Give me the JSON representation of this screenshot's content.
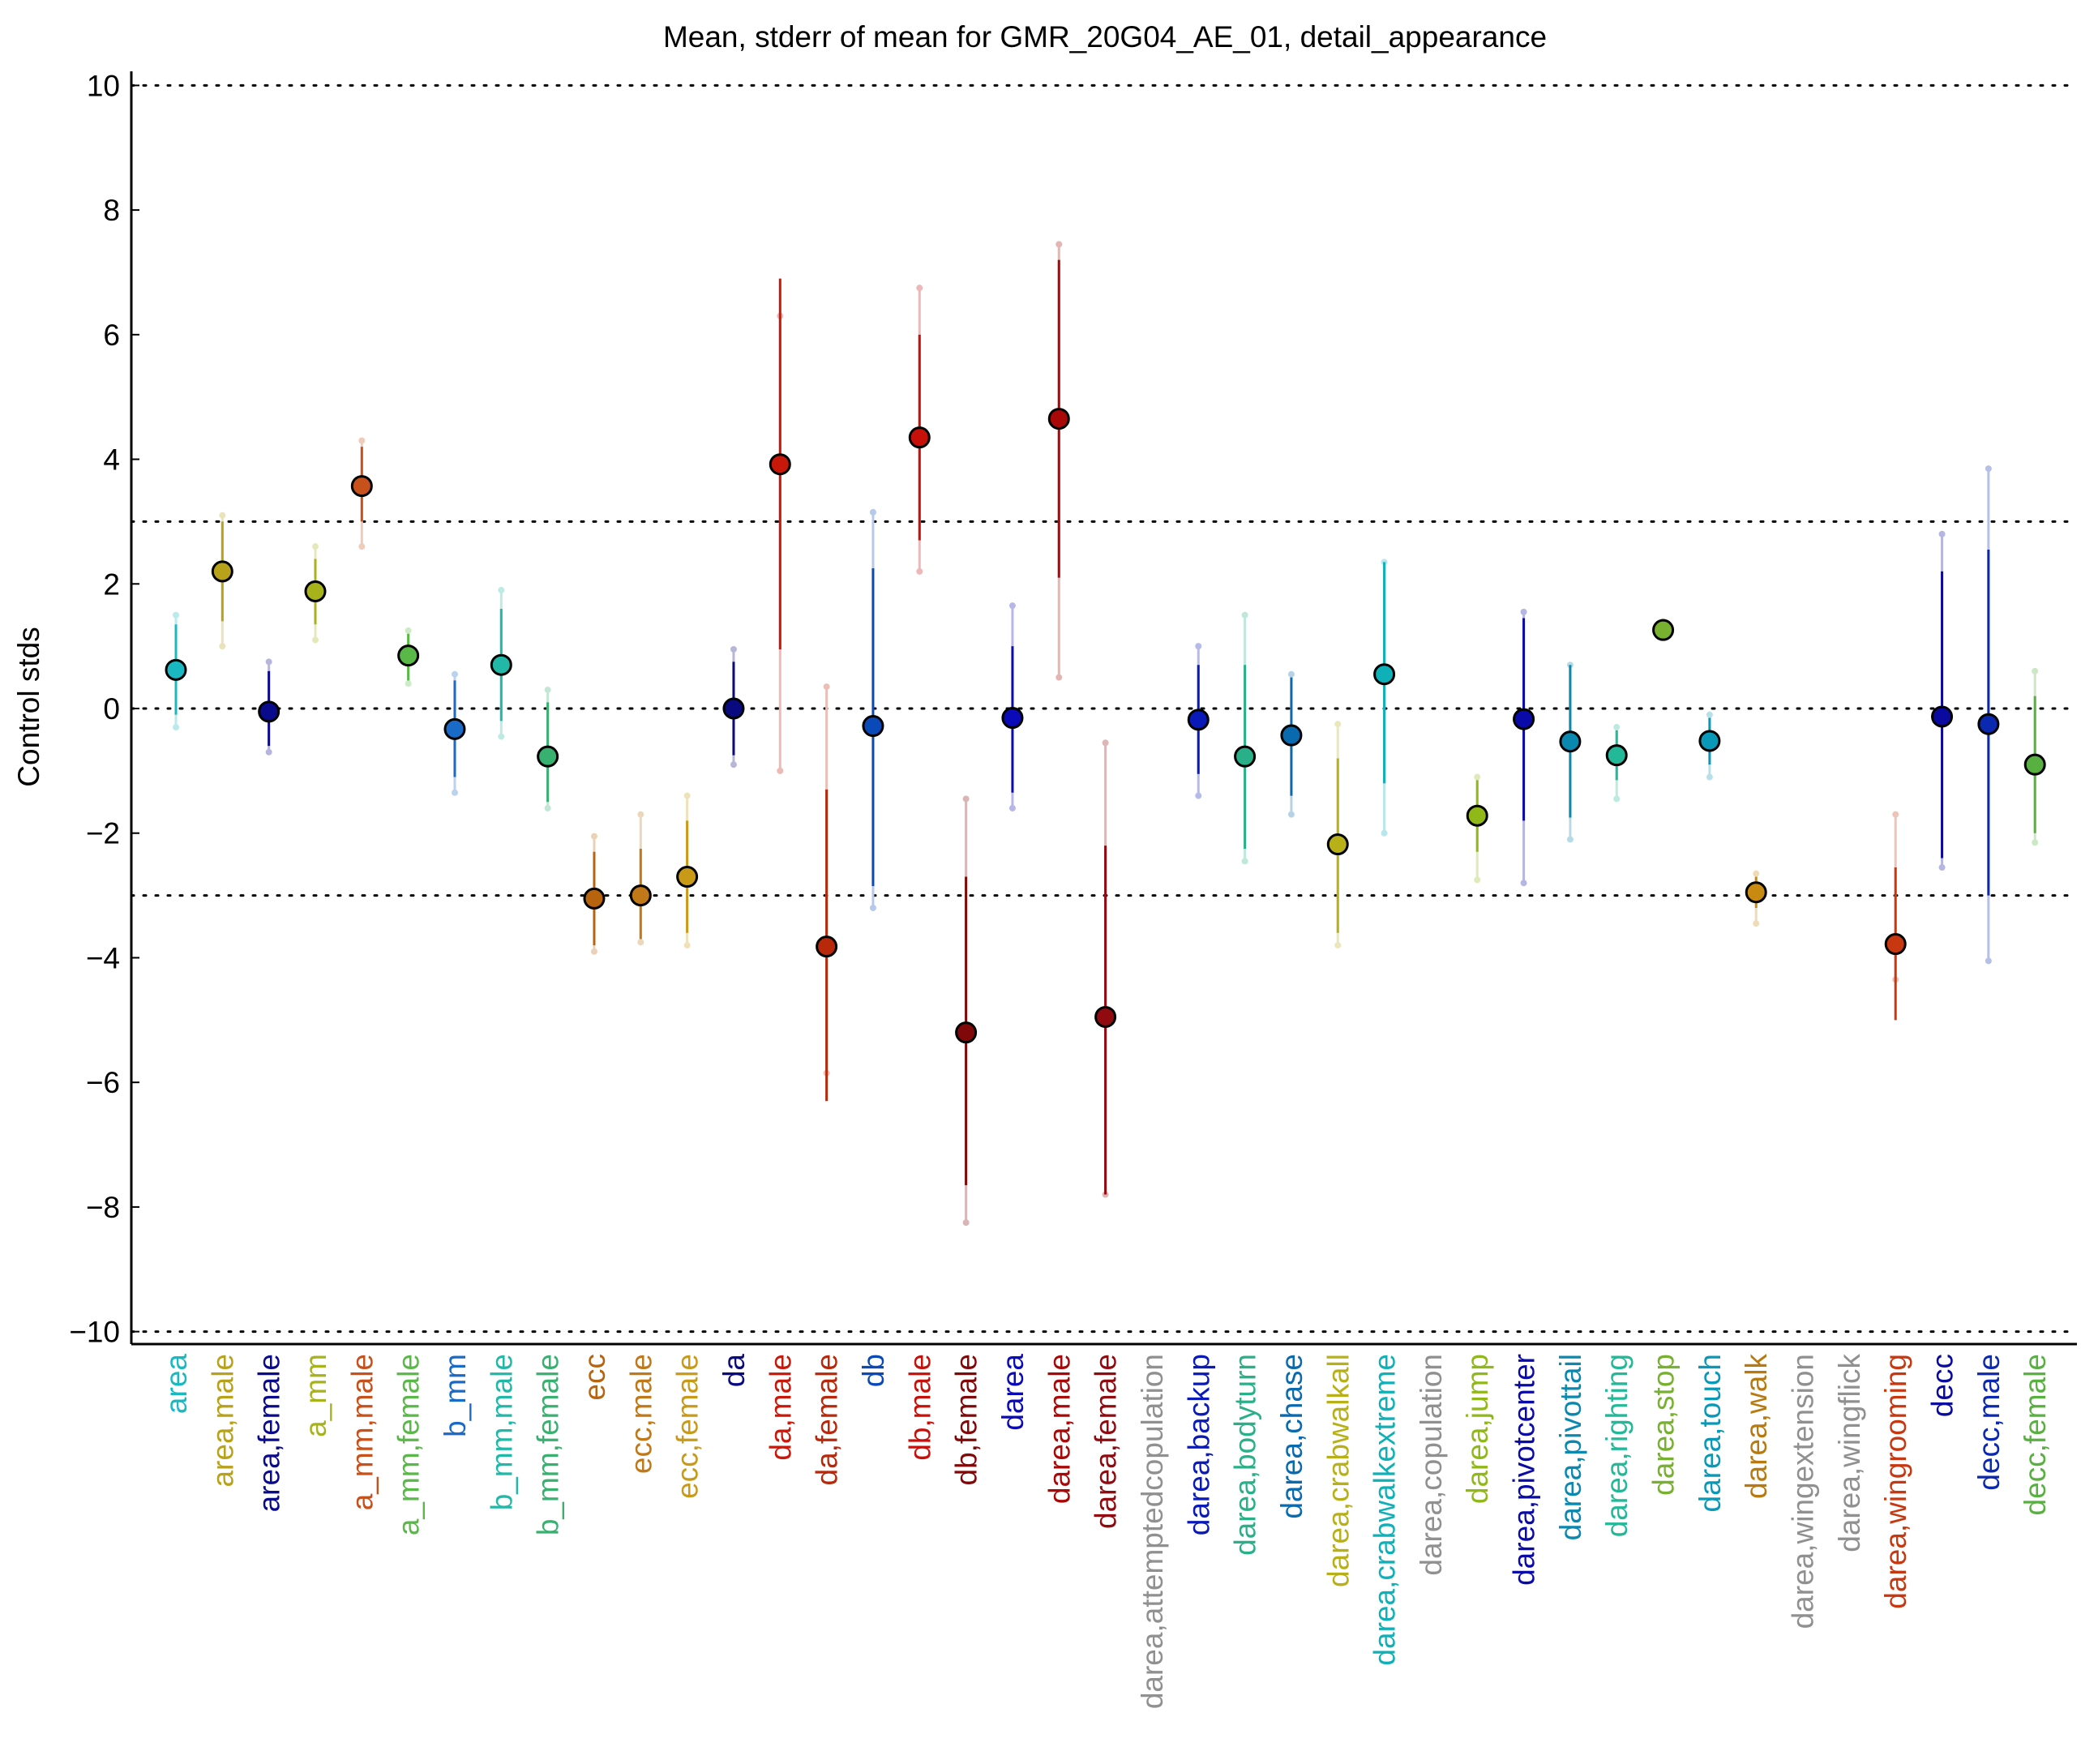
{
  "chart_data": {
    "type": "scatter",
    "title": "Mean, stderr of mean for GMR_20G04_AE_01, detail_appearance",
    "ylabel": "Control stds",
    "xlabel": "",
    "ylim": [
      -10.2,
      10.2
    ],
    "yticks": [
      10,
      8,
      6,
      4,
      2,
      0,
      -2,
      -4,
      -6,
      -8,
      -10
    ],
    "ytick_labels": [
      "10",
      "8",
      "6",
      "4",
      "2",
      "0",
      "−2",
      "−4",
      "−6",
      "−8",
      "−10"
    ],
    "reference_lines": [
      10,
      3,
      0,
      -3,
      -10
    ],
    "grid": false,
    "legend": "none",
    "categories": [
      "area",
      "area,male",
      "area,female",
      "a_mm",
      "a_mm,male",
      "a_mm,female",
      "b_mm",
      "b_mm,male",
      "b_mm,female",
      "ecc",
      "ecc,male",
      "ecc,female",
      "da",
      "da,male",
      "da,female",
      "db",
      "db,male",
      "db,female",
      "darea",
      "darea,male",
      "darea,female",
      "darea,attemptedcopulation",
      "darea,backup",
      "darea,bodyturn",
      "darea,chase",
      "darea,crabwalkall",
      "darea,crabwalkextreme",
      "darea,copulation",
      "darea,jump",
      "darea,pivotcenter",
      "darea,pivottail",
      "darea,righting",
      "darea,stop",
      "darea,touch",
      "darea,walk",
      "darea,wingextension",
      "darea,wingflick",
      "darea,wingrooming",
      "decc",
      "decc,male",
      "decc,female"
    ],
    "points": [
      {
        "mean": 0.62,
        "se_low": -0.1,
        "se_high": 1.35,
        "range_low": -0.3,
        "range_high": 1.5,
        "color": "#1ab8c0",
        "label_color": "#1ab8c0"
      },
      {
        "mean": 2.2,
        "se_low": 1.4,
        "se_high": 3.0,
        "range_low": 1.0,
        "range_high": 3.1,
        "color": "#b8a21a",
        "label_color": "#b8a21a"
      },
      {
        "mean": -0.05,
        "se_low": -0.6,
        "se_high": 0.6,
        "range_low": -0.7,
        "range_high": 0.75,
        "color": "#0a0a8c",
        "label_color": "#0a0a8c"
      },
      {
        "mean": 1.88,
        "se_low": 1.35,
        "se_high": 2.4,
        "range_low": 1.1,
        "range_high": 2.6,
        "color": "#a8b21a",
        "label_color": "#a8b21a"
      },
      {
        "mean": 3.57,
        "se_low": 3.0,
        "se_high": 4.2,
        "range_low": 2.6,
        "range_high": 4.3,
        "color": "#c8501a",
        "label_color": "#c8501a"
      },
      {
        "mean": 0.85,
        "se_low": 0.45,
        "se_high": 1.2,
        "range_low": 0.4,
        "range_high": 1.25,
        "color": "#5ab848",
        "label_color": "#5ab848"
      },
      {
        "mean": -0.33,
        "se_low": -1.1,
        "se_high": 0.45,
        "range_low": -1.35,
        "range_high": 0.55,
        "color": "#1a6ac8",
        "label_color": "#1a6ac8"
      },
      {
        "mean": 0.7,
        "se_low": -0.2,
        "se_high": 1.6,
        "range_low": -0.45,
        "range_high": 1.9,
        "color": "#22b8a8",
        "label_color": "#22b8a8"
      },
      {
        "mean": -0.77,
        "se_low": -1.5,
        "se_high": 0.1,
        "range_low": -1.6,
        "range_high": 0.3,
        "color": "#38b070",
        "label_color": "#38b070"
      },
      {
        "mean": -3.05,
        "se_low": -3.8,
        "se_high": -2.3,
        "range_low": -3.9,
        "range_high": -2.05,
        "color": "#b8640f",
        "label_color": "#b8640f"
      },
      {
        "mean": -3.0,
        "se_low": -3.7,
        "se_high": -2.25,
        "range_low": -3.75,
        "range_high": -1.7,
        "color": "#c07818",
        "label_color": "#c07818"
      },
      {
        "mean": -2.7,
        "se_low": -3.6,
        "se_high": -1.8,
        "range_low": -3.8,
        "range_high": -1.4,
        "color": "#c89a18",
        "label_color": "#c89a18"
      },
      {
        "mean": 0.0,
        "se_low": -0.75,
        "se_high": 0.75,
        "range_low": -0.9,
        "range_high": 0.95,
        "color": "#0a0a80",
        "label_color": "#0a0a80"
      },
      {
        "mean": 3.92,
        "se_low": 0.95,
        "se_high": 6.9,
        "range_low": -1.0,
        "range_high": 6.3,
        "color": "#c8180a",
        "label_color": "#c8180a"
      },
      {
        "mean": -3.82,
        "se_low": -6.3,
        "se_high": -1.3,
        "range_low": -5.85,
        "range_high": 0.35,
        "color": "#b8280a",
        "label_color": "#b8280a"
      },
      {
        "mean": -0.28,
        "se_low": -2.85,
        "se_high": 2.25,
        "range_low": -3.2,
        "range_high": 3.15,
        "color": "#0a4ab8",
        "label_color": "#0a4ab8"
      },
      {
        "mean": 4.35,
        "se_low": 2.7,
        "se_high": 6.0,
        "range_low": 2.2,
        "range_high": 6.75,
        "color": "#c8100a",
        "label_color": "#c8100a"
      },
      {
        "mean": -5.2,
        "se_low": -7.65,
        "se_high": -2.7,
        "range_low": -8.25,
        "range_high": -1.45,
        "color": "#800808",
        "label_color": "#800808"
      },
      {
        "mean": -0.15,
        "se_low": -1.35,
        "se_high": 1.0,
        "range_low": -1.6,
        "range_high": 1.65,
        "color": "#0a0ab8",
        "label_color": "#0a0ab8"
      },
      {
        "mean": 4.65,
        "se_low": 2.1,
        "se_high": 7.2,
        "range_low": 0.5,
        "range_high": 7.45,
        "color": "#a80808",
        "label_color": "#a80808"
      },
      {
        "mean": -4.95,
        "se_low": -7.8,
        "se_high": -2.2,
        "range_low": -7.8,
        "range_high": -0.55,
        "color": "#900a10",
        "label_color": "#900a10"
      },
      {
        "mean": null,
        "se_low": null,
        "se_high": null,
        "range_low": null,
        "range_high": null,
        "color": "#909090",
        "label_color": "#909090"
      },
      {
        "mean": -0.18,
        "se_low": -1.05,
        "se_high": 0.7,
        "range_low": -1.4,
        "range_high": 1.0,
        "color": "#0a1ab8",
        "label_color": "#0a1ab8"
      },
      {
        "mean": -0.77,
        "se_low": -2.25,
        "se_high": 0.7,
        "range_low": -2.45,
        "range_high": 1.5,
        "color": "#2ab088",
        "label_color": "#2ab088"
      },
      {
        "mean": -0.43,
        "se_low": -1.4,
        "se_high": 0.5,
        "range_low": -1.7,
        "range_high": 0.55,
        "color": "#0a6ab0",
        "label_color": "#0a6ab0"
      },
      {
        "mean": -2.18,
        "se_low": -3.6,
        "se_high": -0.8,
        "range_low": -3.8,
        "range_high": -0.25,
        "color": "#b8b018",
        "label_color": "#b8b018"
      },
      {
        "mean": 0.55,
        "se_low": -1.2,
        "se_high": 2.35,
        "range_low": -2.0,
        "range_high": 2.35,
        "color": "#10b0b8",
        "label_color": "#10b0b8"
      },
      {
        "mean": null,
        "se_low": null,
        "se_high": null,
        "range_low": null,
        "range_high": null,
        "color": "#909090",
        "label_color": "#909090"
      },
      {
        "mean": -1.72,
        "se_low": -2.3,
        "se_high": -1.15,
        "range_low": -2.75,
        "range_high": -1.1,
        "color": "#90b818",
        "label_color": "#90b818"
      },
      {
        "mean": -0.17,
        "se_low": -1.8,
        "se_high": 1.45,
        "range_low": -2.8,
        "range_high": 1.55,
        "color": "#0a0aa8",
        "label_color": "#0a0aa8"
      },
      {
        "mean": -0.53,
        "se_low": -1.75,
        "se_high": 0.7,
        "range_low": -2.1,
        "range_high": 0.7,
        "color": "#0a88b0",
        "label_color": "#0a88b0"
      },
      {
        "mean": -0.75,
        "se_low": -1.15,
        "se_high": -0.35,
        "range_low": -1.45,
        "range_high": -0.3,
        "color": "#22b898",
        "label_color": "#22b898"
      },
      {
        "mean": 1.26,
        "se_low": 1.2,
        "se_high": 1.32,
        "range_low": 1.15,
        "range_high": 1.4,
        "color": "#78b030",
        "label_color": "#78b030"
      },
      {
        "mean": -0.52,
        "se_low": -0.9,
        "se_high": -0.15,
        "range_low": -1.1,
        "range_high": -0.1,
        "color": "#0a98b8",
        "label_color": "#0a98b8"
      },
      {
        "mean": -2.95,
        "se_low": -3.2,
        "se_high": -2.7,
        "range_low": -3.45,
        "range_high": -2.65,
        "color": "#c88a10",
        "label_color": "#b87a10"
      },
      {
        "mean": null,
        "se_low": null,
        "se_high": null,
        "range_low": null,
        "range_high": null,
        "color": "#909090",
        "label_color": "#909090"
      },
      {
        "mean": null,
        "se_low": null,
        "se_high": null,
        "range_low": null,
        "range_high": null,
        "color": "#909090",
        "label_color": "#909090"
      },
      {
        "mean": -3.78,
        "se_low": -5.0,
        "se_high": -2.55,
        "range_low": -4.35,
        "range_high": -1.7,
        "color": "#c83810",
        "label_color": "#c83810"
      },
      {
        "mean": -0.13,
        "se_low": -2.4,
        "se_high": 2.2,
        "range_low": -2.55,
        "range_high": 2.8,
        "color": "#0a0aa0",
        "label_color": "#0a0aa0"
      },
      {
        "mean": -0.25,
        "se_low": -3.0,
        "se_high": 2.55,
        "range_low": -4.05,
        "range_high": 3.85,
        "color": "#0a28b0",
        "label_color": "#0a28b0"
      },
      {
        "mean": -0.9,
        "se_low": -2.0,
        "se_high": 0.2,
        "range_low": -2.15,
        "range_high": 0.6,
        "color": "#58b040",
        "label_color": "#58b040"
      }
    ]
  }
}
